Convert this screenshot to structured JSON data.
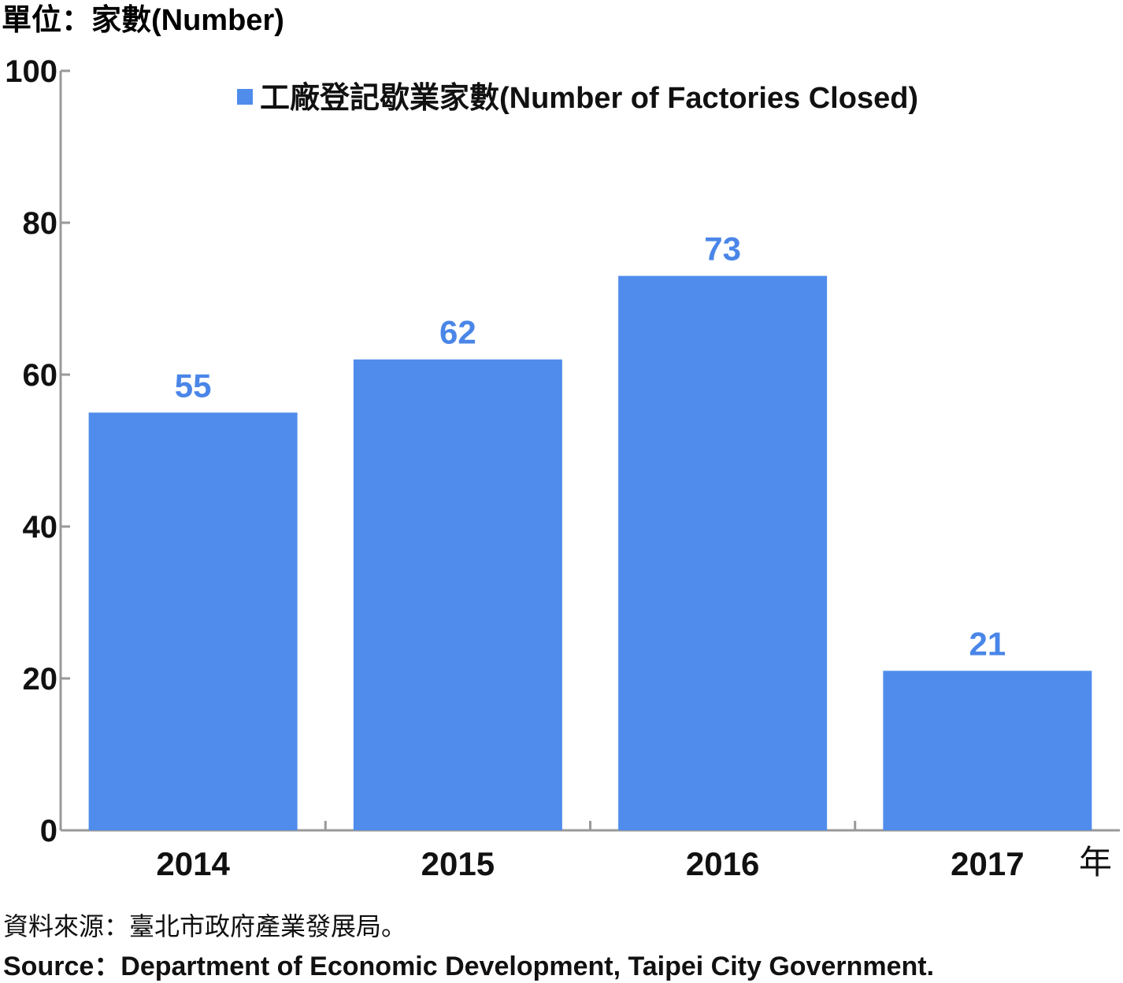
{
  "colors": {
    "bar": "#4f8cec",
    "data_label": "#4a86e8",
    "axis": "#999999"
  },
  "chart_data": {
    "type": "bar",
    "unit_label": "單位：家數(Number)",
    "x_unit": "年",
    "categories": [
      "2014",
      "2015",
      "2016",
      "2017"
    ],
    "series": [
      {
        "name": "工廠登記歇業家數(Number of Factories Closed)",
        "values": [
          55,
          62,
          73,
          21
        ]
      }
    ],
    "ylim": [
      0,
      100
    ],
    "yticks": [
      0,
      20,
      40,
      60,
      80,
      100
    ],
    "grid": false,
    "legend_position": "top-center",
    "data_labels": true
  },
  "source": {
    "zh": "資料來源：臺北市政府產業發展局。",
    "en": "Source：Department of Economic Development, Taipei City Government."
  }
}
